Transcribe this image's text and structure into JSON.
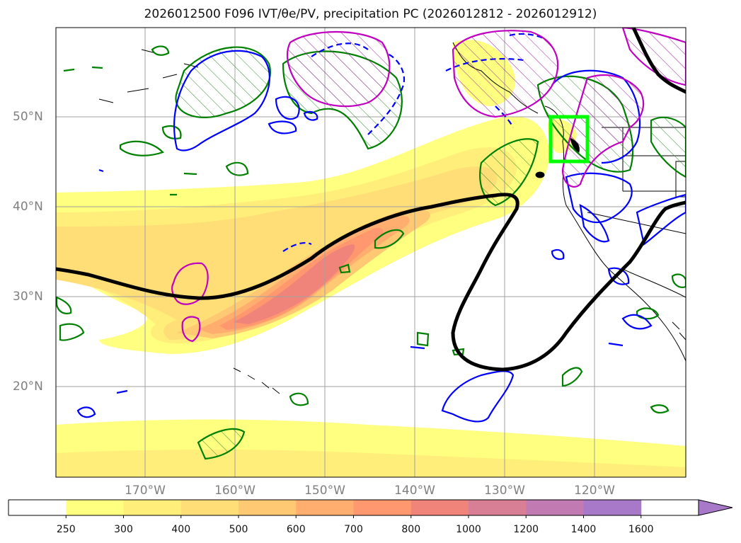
{
  "title": "2026012500 F096 IVT/θe/PV, precipitation PC (2026012812 - 2026012912)",
  "map": {
    "latitude_labels": [
      "50°N",
      "40°N",
      "30°N",
      "20°N"
    ],
    "longitude_labels": [
      "170°W",
      "160°W",
      "150°W",
      "140°W",
      "130°W",
      "120°W"
    ],
    "highlight_box_color": "#00ff00",
    "contour_colors": {
      "theta_e": "#000000",
      "pv_positive": "#0000ff",
      "pv_negative": "#008000",
      "precip": "#c000c0"
    }
  },
  "colorbar": {
    "levels": [
      "250",
      "300",
      "400",
      "500",
      "600",
      "700",
      "800",
      "1000",
      "1200",
      "1400",
      "1600"
    ],
    "colors": [
      "#ffffff",
      "#ffff80",
      "#ffee7a",
      "#ffdd77",
      "#ffc873",
      "#ffae70",
      "#ff976f",
      "#f0837a",
      "#d97f95",
      "#c17bb2",
      "#a878c9"
    ],
    "extend": "max"
  }
}
